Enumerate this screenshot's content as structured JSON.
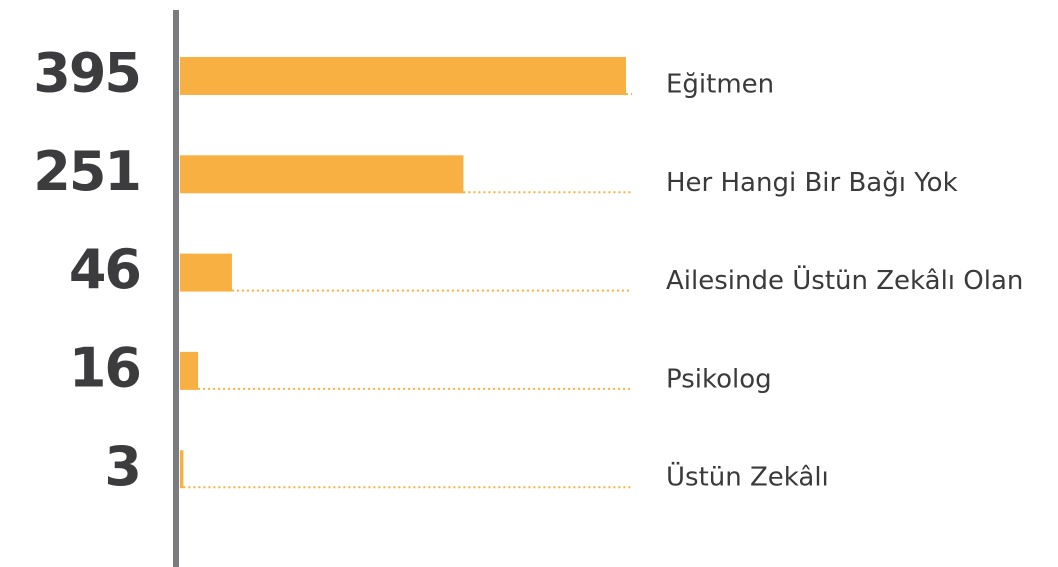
{
  "chart_data": {
    "type": "bar",
    "orientation": "horizontal",
    "categories": [
      "Eğitmen",
      "Her Hangi Bir Bağı Yok",
      "Ailesinde Üstün Zekâlı Olan",
      "Psikolog",
      "Üstün Zekâlı"
    ],
    "values": [
      395,
      251,
      46,
      16,
      3
    ],
    "color": "#f9b042"
  }
}
